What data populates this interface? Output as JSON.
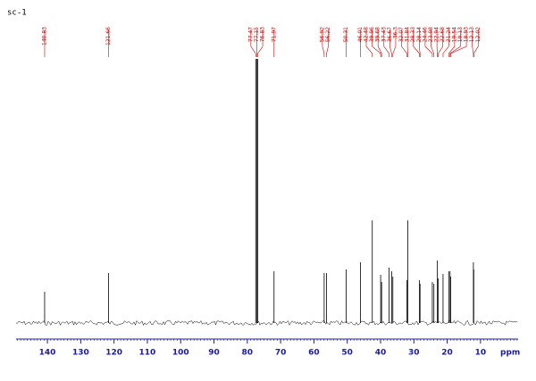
{
  "chart_data": {
    "type": "spectrum",
    "title": "sc-1",
    "x_label": "ppm",
    "x": [
      140.83,
      121.66,
      77.47,
      77.15,
      76.83,
      71.97,
      56.92,
      56.22,
      50.31,
      46.01,
      42.48,
      39.96,
      39.68,
      37.43,
      36.67,
      36.3,
      32.07,
      31.84,
      28.33,
      28.14,
      24.46,
      23.98,
      22.94,
      22.68,
      21.24,
      19.54,
      19.13,
      18.93,
      12.13,
      12.02
    ],
    "values": [
      35,
      56,
      296,
      296,
      296,
      58,
      56,
      56,
      60,
      68,
      115,
      54,
      46,
      62,
      58,
      52,
      48,
      115,
      48,
      44,
      46,
      44,
      70,
      50,
      55,
      58,
      58,
      52,
      68,
      60
    ],
    "color": "#000000",
    "label_color": "#cc0000",
    "axis_color": "#1a1aa8",
    "xlim": [
      149.4,
      -1.3
    ],
    "ylim": [
      0,
      296
    ],
    "xticks": [
      140,
      130,
      120,
      110,
      100,
      90,
      80,
      70,
      60,
      50,
      40,
      30,
      20,
      10
    ]
  }
}
